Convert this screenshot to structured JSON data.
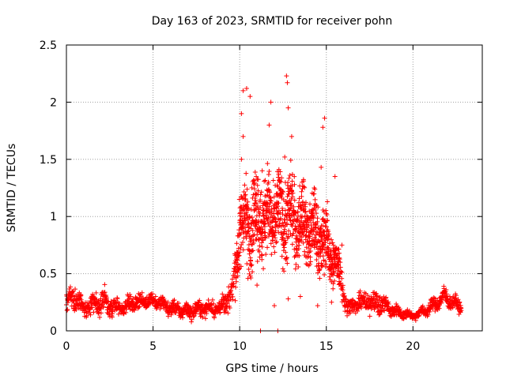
{
  "chart_data": {
    "type": "scatter",
    "title": "Day 163 of 2023, SRMTID for receiver pohn",
    "xlabel": "GPS time / hours",
    "ylabel": "SRMTID / TECUs",
    "xlim": [
      0,
      24
    ],
    "ylim": [
      0,
      2.5
    ],
    "xticks": [
      0,
      5,
      10,
      15,
      20
    ],
    "yticks": [
      0,
      0.5,
      1,
      1.5,
      2,
      2.5
    ],
    "xtick_labels": [
      "0",
      "5",
      "10",
      "15",
      "20"
    ],
    "ytick_labels": [
      "0",
      "0.5",
      "1",
      "1.5",
      "2",
      "2.5"
    ],
    "grid": true,
    "marker": "+",
    "series_color": "#ff0000",
    "series": [
      {
        "name": "SRMTID",
        "envelope": [
          {
            "x": 0.0,
            "y": 0.25,
            "spread": 0.12
          },
          {
            "x": 0.5,
            "y": 0.3,
            "spread": 0.18
          },
          {
            "x": 1.0,
            "y": 0.2,
            "spread": 0.1
          },
          {
            "x": 2.0,
            "y": 0.25,
            "spread": 0.18
          },
          {
            "x": 3.0,
            "y": 0.2,
            "spread": 0.1
          },
          {
            "x": 4.0,
            "y": 0.25,
            "spread": 0.1
          },
          {
            "x": 5.0,
            "y": 0.27,
            "spread": 0.08
          },
          {
            "x": 6.0,
            "y": 0.2,
            "spread": 0.1
          },
          {
            "x": 7.0,
            "y": 0.17,
            "spread": 0.1
          },
          {
            "x": 8.0,
            "y": 0.2,
            "spread": 0.1
          },
          {
            "x": 9.0,
            "y": 0.2,
            "spread": 0.12
          },
          {
            "x": 9.6,
            "y": 0.35,
            "spread": 0.2
          },
          {
            "x": 10.0,
            "y": 0.9,
            "spread": 0.5
          },
          {
            "x": 11.0,
            "y": 1.0,
            "spread": 0.6
          },
          {
            "x": 12.0,
            "y": 1.0,
            "spread": 0.55
          },
          {
            "x": 13.0,
            "y": 1.0,
            "spread": 0.55
          },
          {
            "x": 14.0,
            "y": 0.9,
            "spread": 0.45
          },
          {
            "x": 15.0,
            "y": 0.75,
            "spread": 0.45
          },
          {
            "x": 15.8,
            "y": 0.5,
            "spread": 0.3
          },
          {
            "x": 16.2,
            "y": 0.2,
            "spread": 0.1
          },
          {
            "x": 17.0,
            "y": 0.25,
            "spread": 0.12
          },
          {
            "x": 18.0,
            "y": 0.25,
            "spread": 0.15
          },
          {
            "x": 19.0,
            "y": 0.17,
            "spread": 0.08
          },
          {
            "x": 20.0,
            "y": 0.13,
            "spread": 0.05
          },
          {
            "x": 21.0,
            "y": 0.2,
            "spread": 0.08
          },
          {
            "x": 21.8,
            "y": 0.3,
            "spread": 0.12
          },
          {
            "x": 22.8,
            "y": 0.2,
            "spread": 0.08
          }
        ],
        "points": [
          [
            10.2,
            2.1
          ],
          [
            10.4,
            2.12
          ],
          [
            10.6,
            2.05
          ],
          [
            11.8,
            2.0
          ],
          [
            11.7,
            1.8
          ],
          [
            12.7,
            2.23
          ],
          [
            12.75,
            2.17
          ],
          [
            12.8,
            1.95
          ],
          [
            14.9,
            1.86
          ],
          [
            14.8,
            1.78
          ],
          [
            13.0,
            1.7
          ],
          [
            10.1,
            1.9
          ],
          [
            10.2,
            1.7
          ],
          [
            10.1,
            1.5
          ],
          [
            12.6,
            1.52
          ],
          [
            14.7,
            1.43
          ],
          [
            15.5,
            1.35
          ],
          [
            11.2,
            0.0
          ],
          [
            12.2,
            0.0
          ],
          [
            12.0,
            0.22
          ],
          [
            12.8,
            0.28
          ],
          [
            13.5,
            0.3
          ],
          [
            14.5,
            0.22
          ],
          [
            15.3,
            0.25
          ],
          [
            15.8,
            0.6
          ],
          [
            15.9,
            0.75
          ],
          [
            10.9,
            1.2
          ],
          [
            11.3,
            1.4
          ],
          [
            12.3,
            1.3
          ],
          [
            13.6,
            1.3
          ],
          [
            14.3,
            1.25
          ],
          [
            11.0,
            0.4
          ],
          [
            11.9,
            0.9
          ],
          [
            13.1,
            0.85
          ],
          [
            13.9,
            0.95
          ]
        ]
      }
    ]
  }
}
